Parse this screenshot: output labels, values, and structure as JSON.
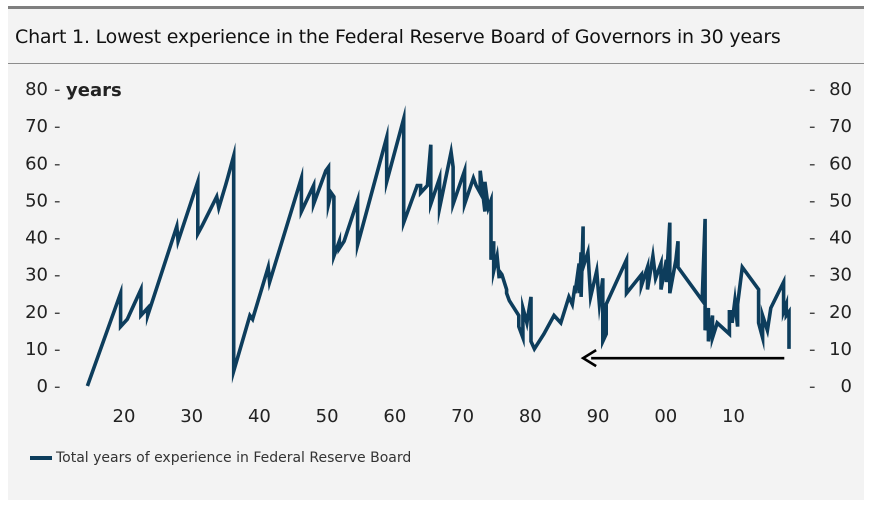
{
  "title": "Chart 1. Lowest experience in the Federal Reserve Board of Governors in 30 years",
  "colors": {
    "series": "#0d3d5c",
    "annotation_arrow": "#000000"
  },
  "legend": {
    "label": "Total years of experience in Federal Reserve Board"
  },
  "chart_data": {
    "type": "line",
    "title": "Chart 1. Lowest experience in the Federal Reserve Board of Governors in 30 years",
    "ylabel": "years",
    "xlim": [
      1911,
      2021
    ],
    "ylim": [
      0,
      80
    ],
    "yticks_left": [
      80,
      70,
      60,
      50,
      40,
      30,
      20,
      10,
      0
    ],
    "yticks_right": [
      80,
      70,
      60,
      50,
      40,
      30,
      20,
      10,
      0
    ],
    "xticks": [
      1920,
      1930,
      1940,
      1950,
      1960,
      1970,
      1980,
      1990,
      2000,
      2010
    ],
    "xtick_labels": [
      "20",
      "30",
      "40",
      "50",
      "60",
      "70",
      "80",
      "90",
      "00",
      "10"
    ],
    "series": [
      {
        "name": "Total years of experience in Federal Reserve Board",
        "x": [
          1914.6,
          1919.5,
          1919.5,
          1920.5,
          1922.5,
          1922.5,
          1923.5,
          1923.5,
          1927.8,
          1928.0,
          1930.9,
          1930.9,
          1931.5,
          1933.7,
          1934.0,
          1935.0,
          1935.3,
          1936.2,
          1936.2,
          1938.6,
          1939.0,
          1941.3,
          1941.5,
          1946.2,
          1946.2,
          1948.0,
          1948.0,
          1949.8,
          1950.2,
          1950.2,
          1950.6,
          1951.0,
          1951.0,
          1951.4,
          1951.8,
          1951.8,
          1952.5,
          1954.5,
          1954.5,
          1958.8,
          1958.8,
          1961.3,
          1961.3,
          1963.3,
          1963.8,
          1963.8,
          1964.8,
          1965.3,
          1965.3,
          1966.6,
          1966.6,
          1968.3,
          1968.6,
          1968.6,
          1970.3,
          1970.3,
          1971.6,
          1972.0,
          1972.6,
          1972.6,
          1973.3,
          1973.3,
          1973.8,
          1974.2,
          1974.2,
          1974.6,
          1974.6,
          1975.1,
          1975.4,
          1975.4,
          1975.8,
          1976.5,
          1976.5,
          1976.9,
          1978.3,
          1978.3,
          1978.9,
          1978.9,
          1979.5,
          1980.1,
          1980.1,
          1980.6,
          1982.0,
          1983.5,
          1984.5,
          1985.7,
          1986.2,
          1986.6,
          1986.6,
          1987.2,
          1987.2,
          1987.5,
          1987.5,
          1987.8,
          1987.8,
          1988.5,
          1988.9,
          1989.8,
          1990.2,
          1990.7,
          1990.7,
          1991.2,
          1991.2,
          1994.2,
          1994.2,
          1996.4,
          1996.4,
          1997.3,
          1997.3,
          1998.1,
          1998.5,
          1999.3,
          1999.3,
          2000.1,
          2000.1,
          2000.6,
          2000.6,
          2001.5,
          2001.8,
          2001.8,
          2005.4,
          2005.4,
          2005.8,
          2005.8,
          2006.3,
          2006.3,
          2006.9,
          2006.9,
          2007.6,
          2009.4,
          2009.4,
          2009.8,
          2009.8,
          2010.2,
          2010.6,
          2010.6,
          2011.3,
          2013.7,
          2013.7,
          2014.3,
          2014.3,
          2015.0,
          2015.5,
          2017.4,
          2017.4,
          2017.8,
          2017.8,
          2018.2,
          2018.2
        ],
        "y": [
          0,
          25,
          16,
          18,
          26,
          19,
          21,
          19,
          43,
          39,
          55,
          41,
          43,
          51,
          48,
          54,
          56,
          62,
          4,
          19,
          18,
          32,
          28,
          56,
          47,
          54,
          49,
          58,
          59,
          49,
          52,
          51,
          35,
          37,
          39,
          37,
          39,
          50,
          38,
          67,
          55,
          72,
          44,
          54,
          54,
          52,
          54,
          65,
          49,
          56,
          48,
          63,
          59,
          49,
          58,
          49,
          56,
          54,
          52,
          58,
          47,
          55,
          48,
          50,
          34,
          39,
          31,
          35,
          29,
          31,
          30,
          26,
          25,
          23,
          19,
          16,
          13,
          21,
          17,
          24,
          12,
          10,
          14,
          19,
          17,
          24,
          22,
          27,
          25,
          33,
          25,
          36,
          24,
          43,
          32,
          36,
          24,
          31,
          22,
          29,
          12,
          14,
          22,
          34,
          25,
          30,
          27,
          32,
          26,
          35,
          29,
          33,
          26,
          34,
          28,
          44,
          25,
          34,
          39,
          32,
          23,
          24,
          45,
          15,
          21,
          12,
          19,
          13,
          17,
          14,
          20,
          20,
          17,
          23,
          16,
          22,
          32,
          26,
          17,
          13,
          19,
          15,
          21,
          28,
          20,
          22,
          19,
          20,
          10
        ],
        "color": "#0d3d5c"
      }
    ],
    "annotations": [
      {
        "type": "arrow",
        "from": [
          2017.5,
          7.5
        ],
        "to": [
          1987.8,
          7.5
        ]
      }
    ]
  }
}
